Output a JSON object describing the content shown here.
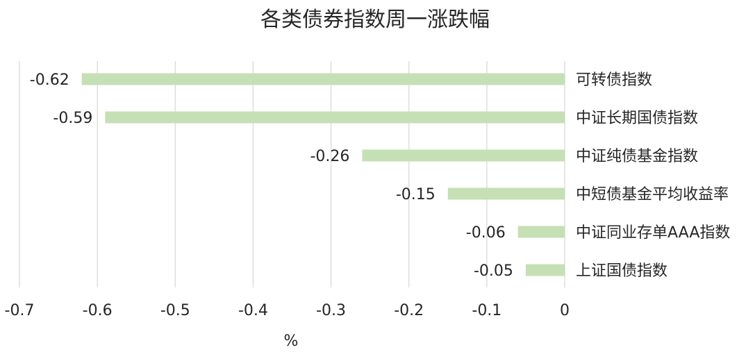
{
  "chart_data": {
    "type": "bar",
    "orientation": "horizontal",
    "title": "各类债券指数周一涨跌幅",
    "xlabel": "%",
    "ylabel": "",
    "xlim": [
      -0.7,
      0
    ],
    "xticks": [
      "-0.7",
      "-0.6",
      "-0.5",
      "-0.4",
      "-0.3",
      "-0.2",
      "-0.1",
      "0"
    ],
    "categories": [
      "可转债指数",
      "中证长期国债指数",
      "中证纯债基金指数",
      "中短债基金平均收益率",
      "中证同业存单AAA指数",
      "上证国债指数"
    ],
    "values": [
      -0.62,
      -0.59,
      -0.26,
      -0.15,
      -0.06,
      -0.05
    ],
    "data_labels": [
      "-0.62",
      "-0.59",
      "-0.26",
      "-0.15",
      "-0.06",
      "-0.05"
    ],
    "bar_color": "#c5e0b4",
    "grid": true,
    "legend": "none"
  }
}
